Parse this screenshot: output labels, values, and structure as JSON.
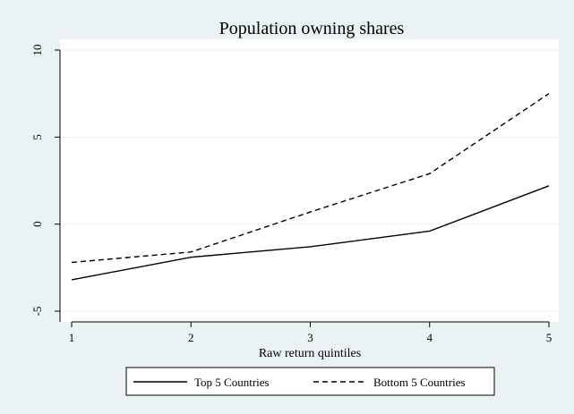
{
  "chart_data": {
    "type": "line",
    "title": "Population owning shares",
    "xlabel": "Raw return quintiles",
    "ylabel": "",
    "x": [
      1,
      2,
      3,
      4,
      5
    ],
    "x_ticks": [
      "1",
      "2",
      "3",
      "4",
      "5"
    ],
    "y_ticks": [
      "-5",
      "0",
      "5",
      "10"
    ],
    "xlim": [
      1,
      5
    ],
    "ylim": [
      -5,
      10
    ],
    "grid": "horizontal",
    "legend_position": "bottom",
    "series": [
      {
        "name": "Top 5 Countries",
        "values": [
          -3.2,
          -1.9,
          -1.3,
          -0.4,
          2.2
        ],
        "style": "solid",
        "color": "#000000"
      },
      {
        "name": "Bottom 5 Countries",
        "values": [
          -2.2,
          -1.6,
          0.7,
          2.9,
          7.5
        ],
        "style": "dashed",
        "color": "#000000"
      }
    ],
    "colors": {
      "background": "#eaf2f3",
      "plot_background": "#ffffff",
      "grid": "#eaf2f3",
      "line": "#000000"
    }
  }
}
